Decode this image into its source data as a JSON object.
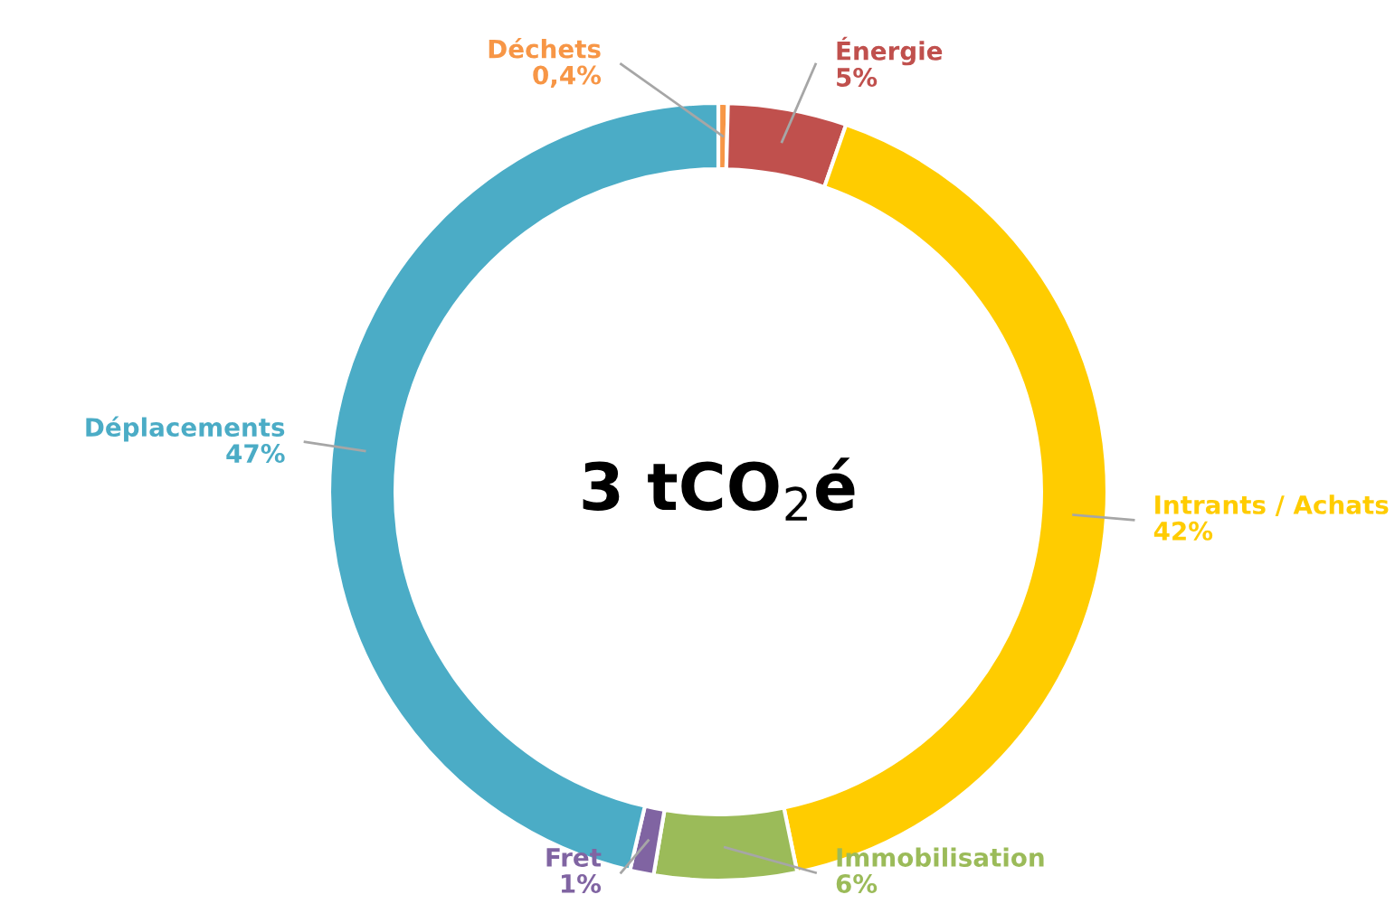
{
  "chart_data": {
    "type": "donut",
    "categories": [
      "Déchets",
      "Énergie",
      "Intrants / Achats",
      "Immobilisation",
      "Fret",
      "Déplacements"
    ],
    "values": [
      0.4,
      5,
      42,
      6,
      1,
      47
    ],
    "colors": [
      "#f79646",
      "#c0504d",
      "#ffcc00",
      "#9bbb59",
      "#8064a2",
      "#4bacc6"
    ],
    "value_labels": [
      "0,4%",
      "5%",
      "42%",
      "6%",
      "1%",
      "47%"
    ],
    "annotations": [
      "3 tCO$_{2}$é"
    ]
  }
}
